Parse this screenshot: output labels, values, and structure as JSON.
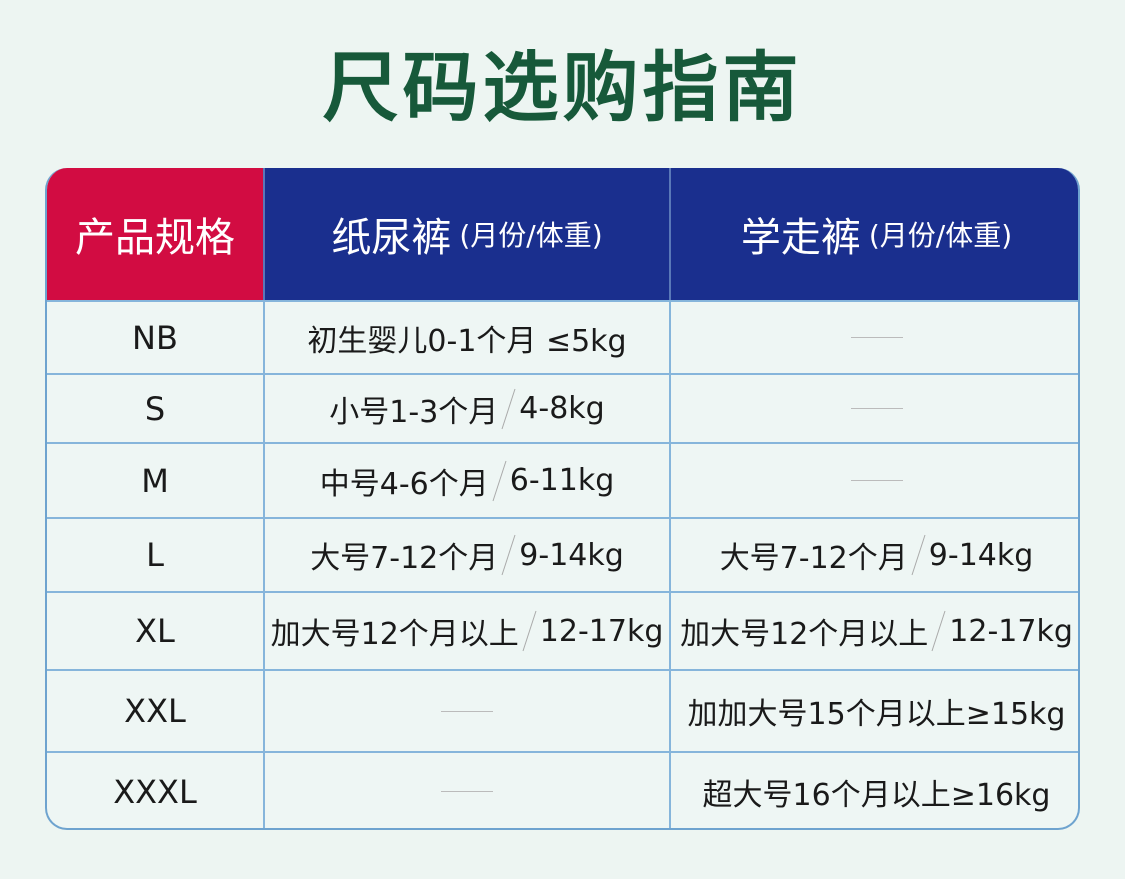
{
  "title": "尺码选购指南",
  "header": {
    "col0": "产品规格",
    "col1": "纸尿裤",
    "col1_sub": "(月份/体重)",
    "col2": "学走裤",
    "col2_sub": "(月份/体重)"
  },
  "colors": {
    "title": "#17593a",
    "header_red": "#d20c42",
    "header_blue": "#1a2f8e",
    "border": "#86b5db"
  },
  "rows": [
    {
      "size": "NB",
      "diaper": {
        "a": "初生婴儿0-1个月 ≤5kg"
      },
      "pants": null
    },
    {
      "size": "S",
      "diaper": {
        "a": "小号1-3个月",
        "b": "4-8kg"
      },
      "pants": null
    },
    {
      "size": "M",
      "diaper": {
        "a": "中号4-6个月",
        "b": "6-11kg"
      },
      "pants": null
    },
    {
      "size": "L",
      "diaper": {
        "a": "大号7-12个月",
        "b": "9-14kg"
      },
      "pants": {
        "a": "大号7-12个月",
        "b": "9-14kg"
      }
    },
    {
      "size": "XL",
      "diaper": {
        "a": "加大号12个月以上",
        "b": "12-17kg"
      },
      "pants": {
        "a": "加大号12个月以上",
        "b": "12-17kg"
      }
    },
    {
      "size": "XXL",
      "diaper": null,
      "pants": {
        "a": "加加大号15个月以上≥15kg"
      }
    },
    {
      "size": "XXXL",
      "diaper": null,
      "pants": {
        "a": "超大号16个月以上≥16kg"
      }
    }
  ]
}
